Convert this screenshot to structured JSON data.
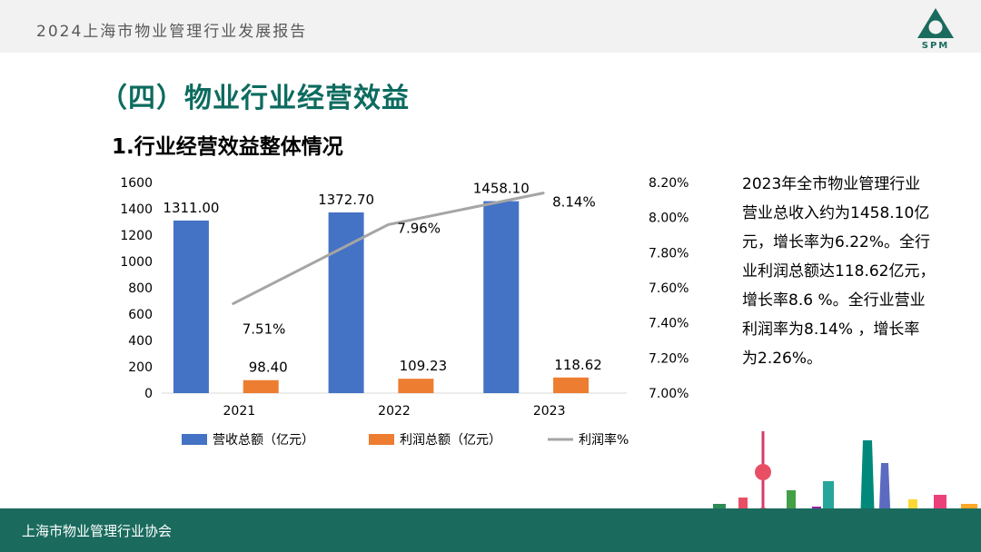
{
  "header": {
    "report_title": "2024上海市物业管理行业发展报告",
    "logo_text": "SPM"
  },
  "section_title": "（四）物业行业经营效益",
  "sub_title": "1.行业经营效益整体情况",
  "chart_data": {
    "type": "bar",
    "categories": [
      "2021",
      "2022",
      "2023"
    ],
    "series": [
      {
        "name": "营收总额（亿元）",
        "type": "bar",
        "axis": "left",
        "color": "#4472c4",
        "values": [
          1311.0,
          1372.7,
          1458.1
        ],
        "labels": [
          "1311.00",
          "1372.70",
          "1458.10"
        ]
      },
      {
        "name": "利润总额（亿元）",
        "type": "bar",
        "axis": "left",
        "color": "#ed7d31",
        "values": [
          98.4,
          109.23,
          118.62
        ],
        "labels": [
          "98.40",
          "109.23",
          "118.62"
        ]
      },
      {
        "name": "利润率%",
        "type": "line",
        "axis": "right",
        "color": "#a5a5a5",
        "values": [
          7.51,
          7.96,
          8.14
        ],
        "labels": [
          "7.51%",
          "7.96%",
          "8.14%"
        ]
      }
    ],
    "y_left": {
      "range": [
        0,
        1600
      ],
      "ticks": [
        "0",
        "200",
        "400",
        "600",
        "800",
        "1000",
        "1200",
        "1400",
        "1600"
      ]
    },
    "y_right": {
      "range": [
        7.0,
        8.2
      ],
      "ticks": [
        "7.00%",
        "7.20%",
        "7.40%",
        "7.60%",
        "7.80%",
        "8.00%",
        "8.20%"
      ]
    },
    "legend_position": "bottom",
    "grid": false
  },
  "description": [
    "2023年全市物业管理行业",
    "营业总收入约为1458.10亿",
    "元，增长率为6.22%。全行",
    "业利润总额达118.62亿元，",
    "增长率8.6 %。全行业营业",
    "利润率为8.14% ，增长率",
    "为2.26%。"
  ],
  "footer": {
    "text": "上海市物业管理行业协会"
  },
  "colors": {
    "brand": "#1a6b5e",
    "title": "#0d6b5f"
  }
}
